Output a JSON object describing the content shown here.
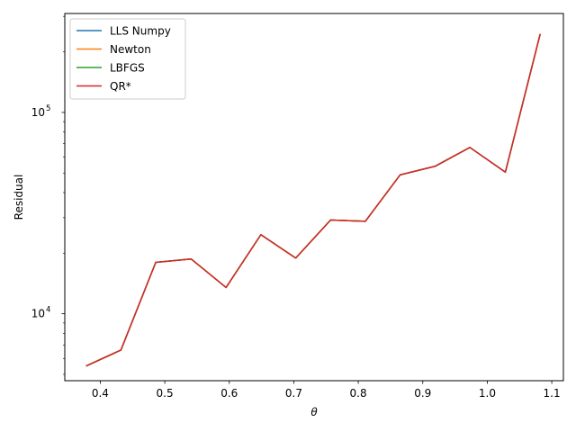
{
  "chart_data": {
    "type": "line",
    "xlabel": "θ",
    "ylabel": "Residual",
    "xlim": [
      0.345,
      1.118
    ],
    "ylim": [
      4650,
      310000
    ],
    "yscale": "log",
    "xticks": [
      0.4,
      0.5,
      0.6,
      0.7,
      0.8,
      0.9,
      1.0,
      1.1
    ],
    "xtick_labels": [
      "0.4",
      "0.5",
      "0.6",
      "0.7",
      "0.8",
      "0.9",
      "1.0",
      "1.1"
    ],
    "ytick_labels": [
      {
        "value": 10000,
        "base": "10",
        "exp": "4"
      },
      {
        "value": 100000,
        "base": "10",
        "exp": "5"
      }
    ],
    "grid": false,
    "legend_position": "upper-left",
    "x": [
      0.378,
      0.432,
      0.486,
      0.541,
      0.595,
      0.649,
      0.703,
      0.757,
      0.811,
      0.865,
      0.919,
      0.973,
      1.028,
      1.082
    ],
    "series": [
      {
        "name": "LLS Numpy",
        "color": "#1f77b4",
        "values": [
          5500,
          6600,
          18000,
          18700,
          13500,
          24700,
          18900,
          29200,
          28800,
          49000,
          54000,
          67000,
          50500,
          245000
        ]
      },
      {
        "name": "Newton",
        "color": "#ff7f0e",
        "values": [
          5500,
          6600,
          18000,
          18700,
          13500,
          24700,
          18900,
          29200,
          28800,
          49000,
          54000,
          67000,
          50500,
          245000
        ]
      },
      {
        "name": "LBFGS",
        "color": "#2ca02c",
        "values": [
          5500,
          6600,
          18000,
          18700,
          13500,
          24700,
          18900,
          29200,
          28800,
          49000,
          54000,
          67000,
          50500,
          245000
        ]
      },
      {
        "name": "QR*",
        "color": "#d62728",
        "values": [
          5500,
          6600,
          18000,
          18700,
          13500,
          24700,
          18900,
          29200,
          28800,
          49000,
          54000,
          67000,
          50500,
          245000
        ]
      }
    ]
  }
}
